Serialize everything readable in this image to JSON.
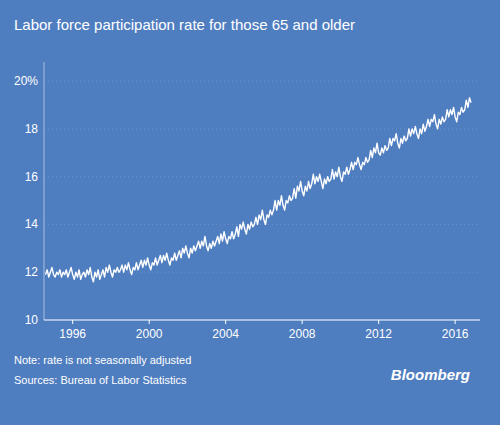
{
  "chart_data": {
    "type": "line",
    "title": "Labor force participation rate for those 65 and older",
    "annotations": [
      "Note: rate is not seasonally adjusted",
      "Sources: Bureau of Labor Statistics",
      "Bloomberg"
    ],
    "color": "#FFFFFF",
    "grid": true,
    "xlim": [
      1994.5,
      2017.3
    ],
    "xticks": [
      1996,
      2000,
      2004,
      2008,
      2012,
      2016
    ],
    "ylim": [
      10,
      20.8
    ],
    "yticks": [
      10,
      12,
      14,
      16,
      18,
      {
        "value": 20,
        "label": "20%"
      }
    ],
    "x": [
      1994.583,
      1994.667,
      1994.75,
      1994.833,
      1994.917,
      1995.0,
      1995.083,
      1995.167,
      1995.25,
      1995.333,
      1995.417,
      1995.5,
      1995.583,
      1995.667,
      1995.75,
      1995.833,
      1995.917,
      1996.0,
      1996.083,
      1996.167,
      1996.25,
      1996.333,
      1996.417,
      1996.5,
      1996.583,
      1996.667,
      1996.75,
      1996.833,
      1996.917,
      1997.0,
      1997.083,
      1997.167,
      1997.25,
      1997.333,
      1997.417,
      1997.5,
      1997.583,
      1997.667,
      1997.75,
      1997.833,
      1997.917,
      1998.0,
      1998.083,
      1998.167,
      1998.25,
      1998.333,
      1998.417,
      1998.5,
      1998.583,
      1998.667,
      1998.75,
      1998.833,
      1998.917,
      1999.0,
      1999.083,
      1999.167,
      1999.25,
      1999.333,
      1999.417,
      1999.5,
      1999.583,
      1999.667,
      1999.75,
      1999.833,
      1999.917,
      2000.0,
      2000.083,
      2000.167,
      2000.25,
      2000.333,
      2000.417,
      2000.5,
      2000.583,
      2000.667,
      2000.75,
      2000.833,
      2000.917,
      2001.0,
      2001.083,
      2001.167,
      2001.25,
      2001.333,
      2001.417,
      2001.5,
      2001.583,
      2001.667,
      2001.75,
      2001.833,
      2001.917,
      2002.0,
      2002.083,
      2002.167,
      2002.25,
      2002.333,
      2002.417,
      2002.5,
      2002.583,
      2002.667,
      2002.75,
      2002.833,
      2002.917,
      2003.0,
      2003.083,
      2003.167,
      2003.25,
      2003.333,
      2003.417,
      2003.5,
      2003.583,
      2003.667,
      2003.75,
      2003.833,
      2003.917,
      2004.0,
      2004.083,
      2004.167,
      2004.25,
      2004.333,
      2004.417,
      2004.5,
      2004.583,
      2004.667,
      2004.75,
      2004.833,
      2004.917,
      2005.0,
      2005.083,
      2005.167,
      2005.25,
      2005.333,
      2005.417,
      2005.5,
      2005.583,
      2005.667,
      2005.75,
      2005.833,
      2005.917,
      2006.0,
      2006.083,
      2006.167,
      2006.25,
      2006.333,
      2006.417,
      2006.5,
      2006.583,
      2006.667,
      2006.75,
      2006.833,
      2006.917,
      2007.0,
      2007.083,
      2007.167,
      2007.25,
      2007.333,
      2007.417,
      2007.5,
      2007.583,
      2007.667,
      2007.75,
      2007.833,
      2007.917,
      2008.0,
      2008.083,
      2008.167,
      2008.25,
      2008.333,
      2008.417,
      2008.5,
      2008.583,
      2008.667,
      2008.75,
      2008.833,
      2008.917,
      2009.0,
      2009.083,
      2009.167,
      2009.25,
      2009.333,
      2009.417,
      2009.5,
      2009.583,
      2009.667,
      2009.75,
      2009.833,
      2009.917,
      2010.0,
      2010.083,
      2010.167,
      2010.25,
      2010.333,
      2010.417,
      2010.5,
      2010.583,
      2010.667,
      2010.75,
      2010.833,
      2010.917,
      2011.0,
      2011.083,
      2011.167,
      2011.25,
      2011.333,
      2011.417,
      2011.5,
      2011.583,
      2011.667,
      2011.75,
      2011.833,
      2011.917,
      2012.0,
      2012.083,
      2012.167,
      2012.25,
      2012.333,
      2012.417,
      2012.5,
      2012.583,
      2012.667,
      2012.75,
      2012.833,
      2012.917,
      2013.0,
      2013.083,
      2013.167,
      2013.25,
      2013.333,
      2013.417,
      2013.5,
      2013.583,
      2013.667,
      2013.75,
      2013.833,
      2013.917,
      2014.0,
      2014.083,
      2014.167,
      2014.25,
      2014.333,
      2014.417,
      2014.5,
      2014.583,
      2014.667,
      2014.75,
      2014.833,
      2014.917,
      2015.0,
      2015.083,
      2015.167,
      2015.25,
      2015.333,
      2015.417,
      2015.5,
      2015.583,
      2015.667,
      2015.75,
      2015.833,
      2015.917,
      2016.0,
      2016.083,
      2016.167,
      2016.25,
      2016.333,
      2016.417,
      2016.5,
      2016.583,
      2016.667,
      2016.75,
      2016.833
    ],
    "values": [
      11.9,
      12.1,
      11.8,
      12.0,
      12.2,
      11.9,
      11.8,
      12.0,
      11.9,
      12.1,
      11.8,
      12.0,
      11.9,
      12.1,
      11.8,
      12.0,
      12.2,
      11.9,
      11.7,
      12.0,
      11.8,
      12.1,
      11.7,
      11.9,
      12.0,
      11.8,
      12.1,
      11.9,
      12.2,
      11.8,
      11.6,
      12.0,
      11.8,
      12.1,
      11.7,
      11.9,
      12.1,
      11.8,
      12.2,
      12.0,
      12.3,
      12.0,
      11.8,
      12.1,
      12.0,
      12.2,
      12.0,
      12.1,
      12.3,
      12.0,
      12.3,
      12.1,
      12.4,
      12.1,
      11.9,
      12.2,
      12.1,
      12.4,
      12.1,
      12.3,
      12.5,
      12.2,
      12.5,
      12.3,
      12.6,
      12.3,
      12.1,
      12.4,
      12.3,
      12.6,
      12.3,
      12.5,
      12.7,
      12.4,
      12.7,
      12.5,
      12.8,
      12.5,
      12.3,
      12.6,
      12.5,
      12.8,
      12.5,
      12.7,
      12.9,
      12.6,
      13.0,
      12.8,
      13.1,
      12.8,
      12.6,
      13.0,
      12.8,
      13.1,
      12.9,
      13.1,
      13.3,
      13.0,
      13.3,
      13.1,
      13.5,
      13.1,
      12.9,
      13.2,
      13.0,
      13.3,
      13.1,
      13.3,
      13.5,
      13.2,
      13.6,
      13.3,
      13.7,
      13.4,
      13.2,
      13.5,
      13.4,
      13.7,
      13.4,
      13.6,
      13.9,
      13.5,
      14.0,
      13.8,
      14.1,
      13.8,
      13.6,
      14.0,
      13.8,
      14.1,
      13.9,
      14.0,
      14.3,
      14.0,
      14.4,
      14.2,
      14.6,
      14.2,
      14.0,
      14.4,
      14.3,
      14.6,
      14.4,
      14.6,
      15.0,
      14.6,
      15.0,
      14.8,
      15.2,
      14.8,
      14.6,
      15.0,
      14.9,
      15.2,
      15.0,
      15.1,
      15.5,
      15.1,
      15.6,
      15.4,
      15.8,
      15.4,
      15.2,
      15.6,
      15.4,
      15.8,
      15.5,
      15.7,
      16.1,
      15.7,
      16.0,
      15.8,
      16.1,
      15.8,
      15.5,
      15.9,
      15.7,
      16.0,
      15.8,
      15.9,
      16.3,
      15.9,
      16.2,
      16.0,
      16.4,
      16.0,
      15.8,
      16.2,
      16.1,
      16.4,
      16.1,
      16.3,
      16.6,
      16.3,
      16.6,
      16.5,
      16.8,
      16.5,
      16.3,
      16.6,
      16.5,
      16.8,
      16.6,
      16.7,
      17.1,
      16.8,
      17.2,
      17.0,
      17.4,
      17.0,
      16.9,
      17.2,
      17.0,
      17.3,
      17.1,
      17.2,
      17.6,
      17.3,
      17.6,
      17.5,
      17.8,
      17.4,
      17.2,
      17.6,
      17.4,
      17.7,
      17.5,
      17.6,
      18.0,
      17.7,
      18.0,
      17.8,
      18.1,
      17.8,
      17.6,
      18.0,
      17.8,
      18.2,
      17.9,
      18.1,
      18.4,
      18.1,
      18.4,
      18.3,
      18.6,
      18.2,
      18.0,
      18.4,
      18.2,
      18.5,
      18.3,
      18.4,
      18.8,
      18.5,
      18.8,
      18.6,
      18.9,
      18.5,
      18.3,
      18.7,
      18.6,
      18.9,
      18.7,
      18.8,
      19.2,
      18.9,
      19.3,
      19.1
    ]
  }
}
